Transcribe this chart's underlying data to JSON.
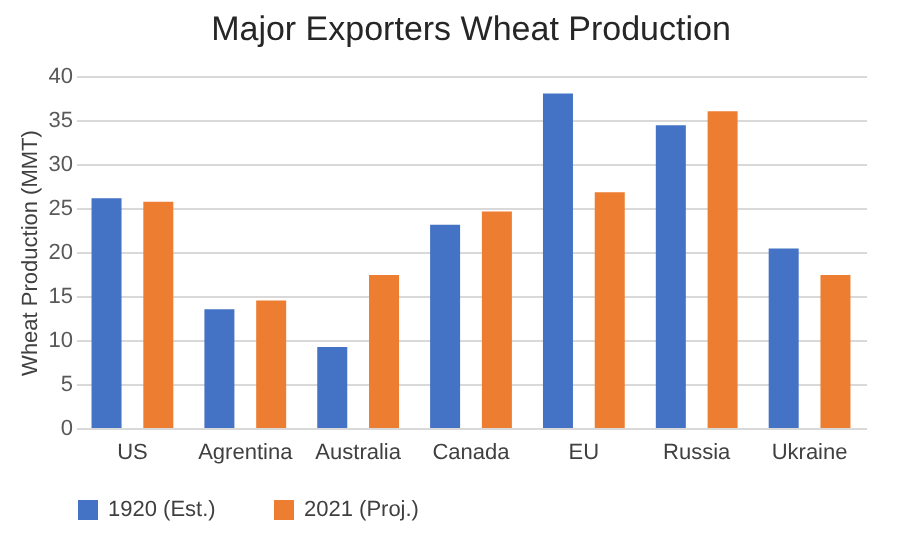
{
  "chart_data": {
    "type": "bar",
    "title": "Major Exporters Wheat Production",
    "ylabel": "Wheat Production (MMT)",
    "categories": [
      "US",
      "Agrentina",
      "Australia",
      "Canada",
      "EU",
      "Russia",
      "Ukraine"
    ],
    "series": [
      {
        "name": "1920 (Est.)",
        "color": "#4472c4",
        "values": [
          26.1,
          13.5,
          9.2,
          23.1,
          38.0,
          34.4,
          20.4
        ]
      },
      {
        "name": "2021 (Proj.)",
        "color": "#ed7d31",
        "values": [
          25.7,
          14.5,
          17.4,
          24.6,
          26.8,
          36.0,
          17.4
        ]
      }
    ],
    "ylim": [
      0,
      40
    ],
    "yticks": [
      0,
      5,
      10,
      15,
      20,
      25,
      30,
      35,
      40
    ],
    "grid": "y",
    "legend": "bottom"
  }
}
